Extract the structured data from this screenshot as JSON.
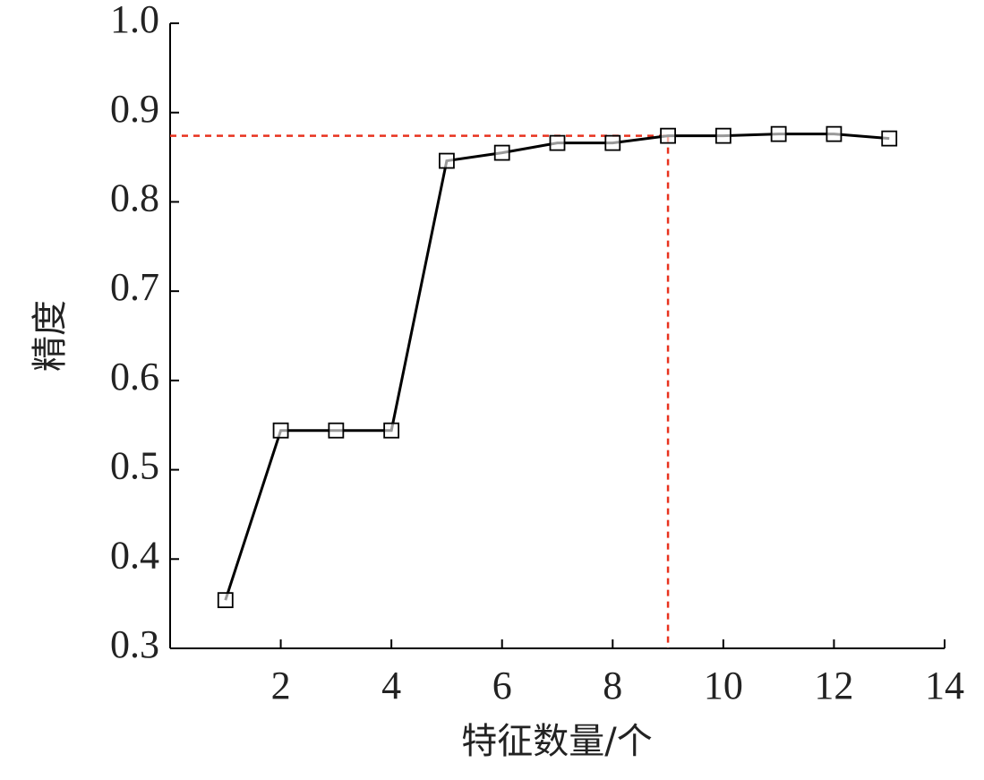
{
  "chart_data": {
    "type": "line",
    "x_label": "特征数量/个",
    "y_label": "精度",
    "x": [
      1,
      2,
      3,
      4,
      5,
      6,
      7,
      8,
      9,
      10,
      11,
      12,
      13
    ],
    "series": [
      {
        "color": "#000000",
        "values": [
          0.354,
          0.544,
          0.544,
          0.544,
          0.846,
          0.855,
          0.866,
          0.866,
          0.874,
          0.874,
          0.876,
          0.876,
          0.871
        ]
      }
    ],
    "xlim": [
      0,
      14
    ],
    "xticks": [
      2,
      4,
      6,
      8,
      10,
      12,
      14
    ],
    "ylim": [
      0.3,
      1.0
    ],
    "yticks": [
      0.3,
      0.4,
      0.5,
      0.6,
      0.7,
      0.8,
      0.9,
      {
        "value": 1.0,
        "label": "1.0"
      }
    ],
    "reference": {
      "x": 9,
      "y": 0.874,
      "color": "#e8321e"
    }
  }
}
